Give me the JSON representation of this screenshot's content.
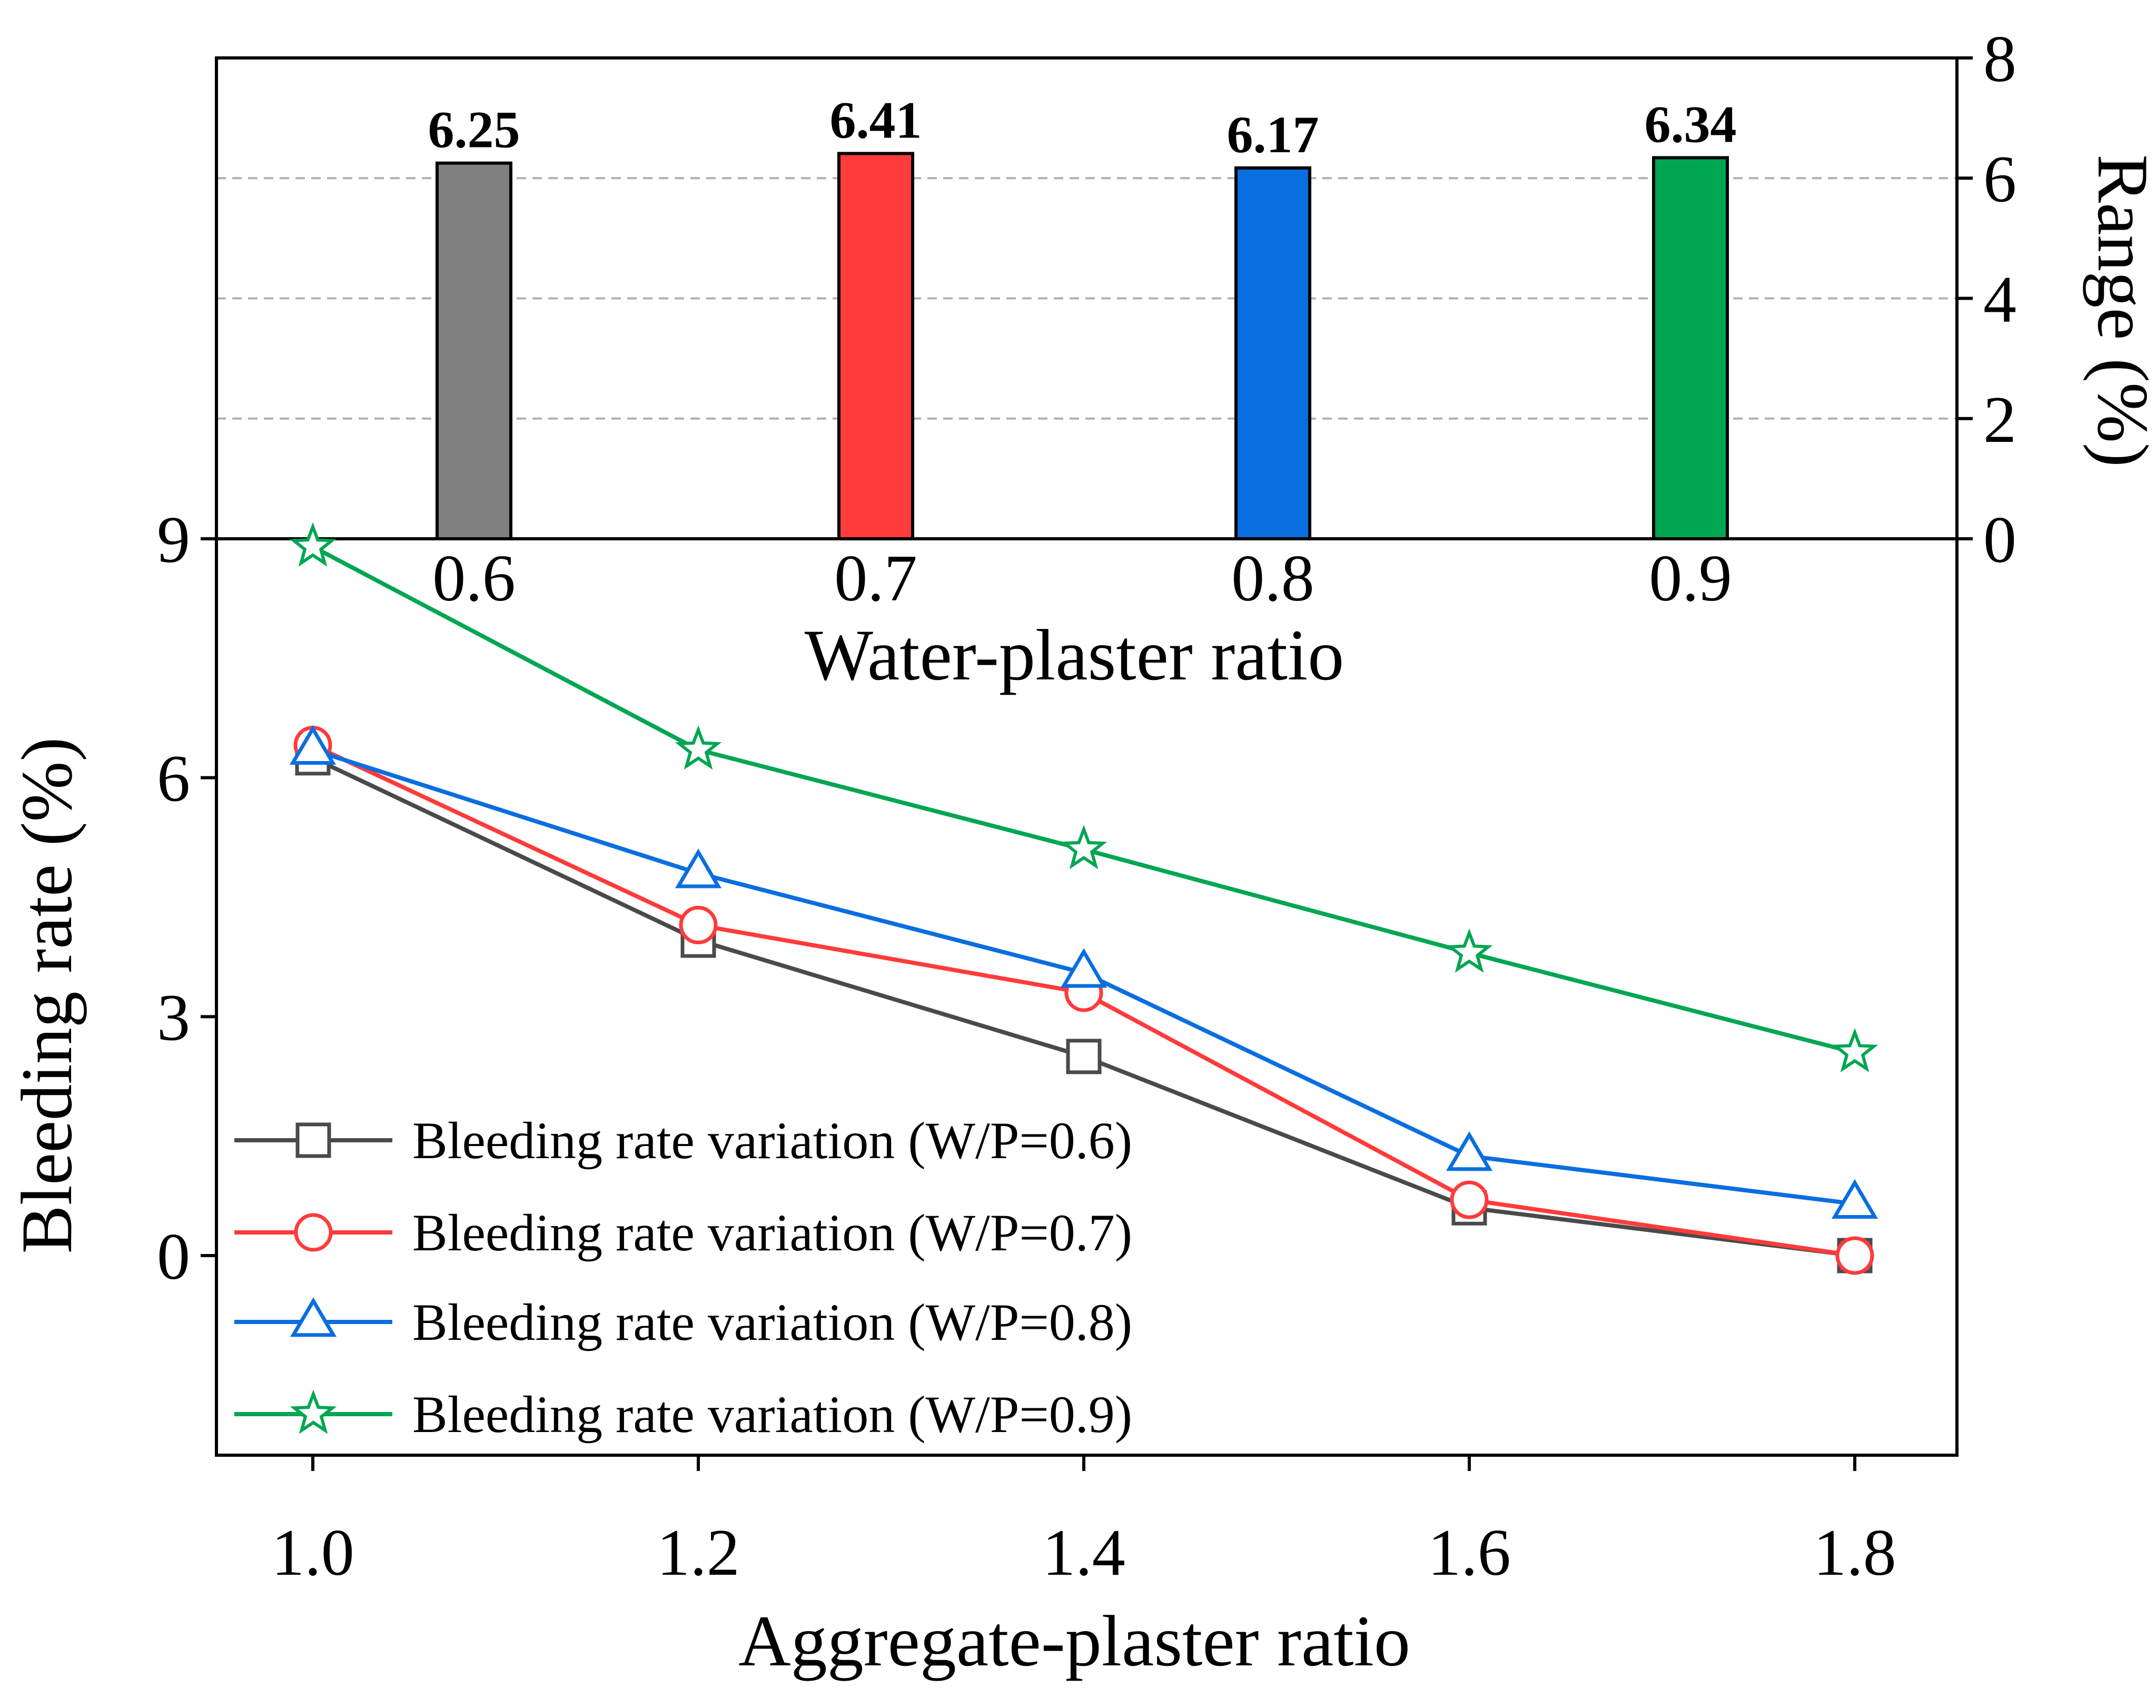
{
  "chart_data": [
    {
      "type": "bar",
      "xlabel": "Water-plaster ratio",
      "ylabel": "Range (%)",
      "categories": [
        "0.6",
        "0.7",
        "0.8",
        "0.9"
      ],
      "values": [
        6.25,
        6.41,
        6.17,
        6.34
      ],
      "value_labels": [
        "6.25",
        "6.41",
        "6.17",
        "6.34"
      ],
      "colors": [
        "#808080",
        "#ff3b3b",
        "#0a6ee0",
        "#00a651"
      ],
      "ylim": [
        0,
        8
      ],
      "yticks": [
        "0",
        "2",
        "4",
        "6",
        "8"
      ],
      "grid": true,
      "yaxis_side": "right"
    },
    {
      "type": "line",
      "xlabel": "Aggregate-plaster ratio",
      "ylabel": "Bleeding rate (%)",
      "x": [
        1.0,
        1.2,
        1.4,
        1.6,
        1.8
      ],
      "xticks": [
        "1.0",
        "1.2",
        "1.4",
        "1.6",
        "1.8"
      ],
      "ylim": [
        -2.5,
        9
      ],
      "yticks": [
        "0",
        "3",
        "6",
        "9"
      ],
      "legend_position": "bottom-left",
      "series": [
        {
          "name": "Bleeding rate variation (W/P=0.6)",
          "marker": "square",
          "color": "#4a4a4a",
          "values": [
            6.25,
            3.96,
            2.5,
            0.6,
            0.0
          ]
        },
        {
          "name": "Bleeding rate variation (W/P=0.7)",
          "marker": "circle",
          "color": "#ff3b3b",
          "values": [
            6.41,
            4.15,
            3.3,
            0.7,
            0.0
          ]
        },
        {
          "name": "Bleeding rate variation (W/P=0.8)",
          "marker": "triangle",
          "color": "#0a6ee0",
          "values": [
            6.35,
            4.8,
            3.55,
            1.25,
            0.65
          ]
        },
        {
          "name": "Bleeding rate variation (W/P=0.9)",
          "marker": "star",
          "color": "#00a651",
          "values": [
            8.9,
            6.35,
            5.1,
            3.8,
            2.55
          ]
        }
      ]
    }
  ]
}
